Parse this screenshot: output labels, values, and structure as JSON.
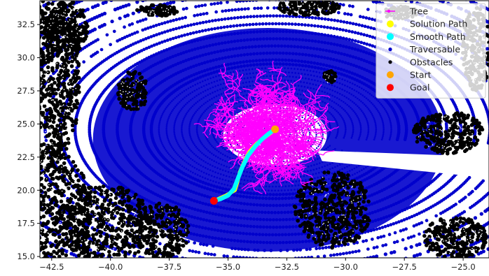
{
  "chart_data": {
    "type": "scatter",
    "title": "",
    "xlabel": "",
    "ylabel": "",
    "xlim": [
      -43.0,
      -23.9
    ],
    "ylim": [
      14.9,
      34.3
    ],
    "x_ticks": [
      -42.5,
      -40.0,
      -37.5,
      -35.0,
      -32.5,
      -30.0,
      -27.5,
      -25.0
    ],
    "x_tick_labels": [
      "−42.5",
      "−40.0",
      "−37.5",
      "−35.0",
      "−32.5",
      "−30.0",
      "−27.5",
      "−25.0"
    ],
    "y_ticks": [
      15.0,
      17.5,
      20.0,
      22.5,
      25.0,
      27.5,
      30.0,
      32.5
    ],
    "y_tick_labels": [
      "15.0",
      "17.5",
      "20.0",
      "22.5",
      "25.0",
      "27.5",
      "30.0",
      "32.5"
    ],
    "grid": false,
    "legend_position": "top-right",
    "sensor_center": [
      -33.0,
      24.6
    ],
    "series": [
      {
        "name": "Tree",
        "color": "#ff00ff",
        "marker": "line-dot"
      },
      {
        "name": "Solution Path",
        "color": "#ffff00",
        "marker": "circle",
        "x": [
          -35.6,
          -35.1,
          -34.7,
          -34.6,
          -34.5,
          -34.3,
          -34.1,
          -33.8,
          -33.5,
          -33.2,
          -33.0
        ],
        "y": [
          19.2,
          19.6,
          20.0,
          20.6,
          21.4,
          22.2,
          22.9,
          23.5,
          23.9,
          24.3,
          24.6
        ]
      },
      {
        "name": "Smooth Path",
        "color": "#00ffff",
        "marker": "circle",
        "x": [
          -35.6,
          -35.3,
          -35.0,
          -34.75,
          -34.6,
          -34.4,
          -34.15,
          -33.85,
          -33.55,
          -33.25,
          -33.0
        ],
        "y": [
          19.2,
          19.35,
          19.6,
          20.1,
          20.8,
          21.7,
          22.6,
          23.3,
          23.85,
          24.3,
          24.6
        ]
      },
      {
        "name": "Traversable",
        "color": "#0000cc",
        "marker": "circle"
      },
      {
        "name": "Obstacles",
        "color": "#000000",
        "marker": "circle"
      },
      {
        "name": "Start",
        "color": "#ffa500",
        "marker": "circle",
        "x": [
          -33.0
        ],
        "y": [
          24.6
        ]
      },
      {
        "name": "Goal",
        "color": "#ff0000",
        "marker": "circle",
        "x": [
          -35.6
        ],
        "y": [
          19.2
        ]
      }
    ]
  }
}
